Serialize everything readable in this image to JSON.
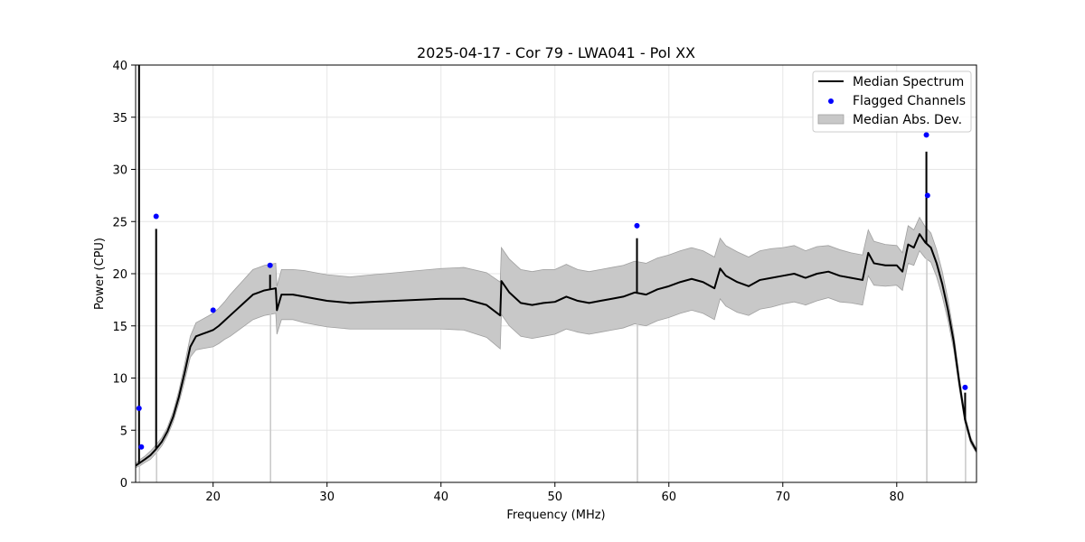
{
  "chart_data": {
    "type": "line",
    "title": "2025-04-17 - Cor 79 - LWA041 - Pol XX",
    "xlabel": "Frequency (MHz)",
    "ylabel": "Power (CPU)",
    "xlim": [
      13.2,
      87.0
    ],
    "ylim": [
      0,
      40
    ],
    "xticks": [
      20,
      30,
      40,
      50,
      60,
      70,
      80
    ],
    "yticks": [
      0,
      5,
      10,
      15,
      20,
      25,
      30,
      35,
      40
    ],
    "grid": true,
    "legend_position": "top-right",
    "legend": [
      "Median Spectrum",
      "Flagged Channels",
      "Median Abs. Dev."
    ],
    "colors": {
      "line": "#000000",
      "flagged": "#0000ff",
      "band_fill": "#c8c8c8",
      "band_edge": "#a0a0a0",
      "grid": "#e6e6e6"
    },
    "series": [
      {
        "name": "Median Spectrum",
        "x": [
          13.2,
          13.6,
          14.0,
          14.5,
          15.0,
          15.5,
          16.0,
          16.5,
          17.0,
          17.5,
          18.0,
          18.5,
          19.0,
          19.5,
          20.0,
          20.5,
          21.0,
          21.5,
          22.0,
          22.5,
          23.0,
          23.5,
          24.0,
          24.5,
          25.0,
          25.5,
          25.6,
          26.0,
          27.0,
          28.0,
          29.0,
          30.0,
          32.0,
          34.0,
          36.0,
          38.0,
          40.0,
          42.0,
          44.0,
          45.2,
          45.3,
          46.0,
          47.0,
          48.0,
          49.0,
          50.0,
          51.0,
          52.0,
          53.0,
          54.0,
          55.0,
          56.0,
          57.0,
          58.0,
          59.0,
          60.0,
          61.0,
          62.0,
          63.0,
          64.0,
          64.5,
          65.0,
          66.0,
          67.0,
          68.0,
          69.0,
          70.0,
          71.0,
          72.0,
          73.0,
          74.0,
          75.0,
          76.0,
          77.0,
          77.5,
          78.0,
          79.0,
          80.0,
          80.5,
          81.0,
          81.5,
          82.0,
          82.5,
          83.0,
          83.5,
          84.0,
          84.5,
          85.0,
          85.5,
          86.0,
          86.5,
          87.0
        ],
        "y": [
          1.6,
          1.9,
          2.2,
          2.6,
          3.2,
          3.9,
          4.9,
          6.3,
          8.2,
          10.5,
          13.0,
          14.0,
          14.2,
          14.4,
          14.6,
          15.0,
          15.5,
          16.0,
          16.5,
          17.0,
          17.5,
          18.0,
          18.2,
          18.4,
          18.5,
          18.6,
          16.5,
          18.0,
          18.0,
          17.8,
          17.6,
          17.4,
          17.2,
          17.3,
          17.4,
          17.5,
          17.6,
          17.6,
          17.0,
          16.0,
          19.3,
          18.2,
          17.2,
          17.0,
          17.2,
          17.3,
          17.8,
          17.4,
          17.2,
          17.4,
          17.6,
          17.8,
          18.2,
          18.0,
          18.5,
          18.8,
          19.2,
          19.5,
          19.2,
          18.6,
          20.5,
          19.8,
          19.2,
          18.8,
          19.4,
          19.6,
          19.8,
          20.0,
          19.6,
          20.0,
          20.2,
          19.8,
          19.6,
          19.4,
          22.0,
          21.0,
          20.8,
          20.8,
          20.2,
          22.8,
          22.5,
          23.8,
          23.0,
          22.5,
          21.0,
          19.0,
          16.5,
          13.5,
          9.5,
          6.0,
          4.0,
          3.0
        ],
        "mad": [
          0.2,
          0.3,
          0.3,
          0.4,
          0.4,
          0.4,
          0.4,
          0.5,
          0.6,
          0.8,
          1.0,
          1.3,
          1.4,
          1.5,
          1.6,
          1.7,
          1.8,
          2.0,
          2.1,
          2.2,
          2.3,
          2.4,
          2.4,
          2.4,
          2.4,
          2.4,
          2.3,
          2.4,
          2.4,
          2.5,
          2.5,
          2.5,
          2.5,
          2.6,
          2.7,
          2.8,
          2.9,
          3.0,
          3.1,
          3.2,
          3.2,
          3.2,
          3.2,
          3.2,
          3.2,
          3.1,
          3.1,
          3.0,
          3.0,
          3.0,
          3.0,
          3.0,
          3.0,
          3.0,
          3.0,
          3.0,
          3.0,
          3.0,
          3.0,
          3.0,
          2.9,
          2.9,
          2.9,
          2.8,
          2.8,
          2.8,
          2.7,
          2.7,
          2.6,
          2.6,
          2.5,
          2.5,
          2.4,
          2.4,
          2.2,
          2.1,
          2.0,
          1.9,
          1.8,
          1.8,
          1.7,
          1.6,
          1.5,
          1.4,
          1.3,
          1.2,
          1.0,
          0.8,
          0.6,
          0.4,
          0.3,
          0.2
        ]
      },
      {
        "name": "Flagged Channels",
        "x": [
          13.5,
          13.7,
          15.0,
          20.0,
          25.0,
          57.2,
          82.6,
          82.7,
          86.0
        ],
        "y": [
          7.1,
          3.4,
          25.5,
          16.5,
          20.8,
          24.6,
          33.3,
          27.5,
          9.1
        ]
      }
    ],
    "spikes": [
      {
        "x": 13.5,
        "top": 40.0
      },
      {
        "x": 15.0,
        "top": 24.3
      },
      {
        "x": 25.0,
        "top": 19.9
      },
      {
        "x": 57.2,
        "top": 23.4
      },
      {
        "x": 82.6,
        "top": 31.7
      },
      {
        "x": 86.0,
        "top": 8.6
      }
    ]
  }
}
